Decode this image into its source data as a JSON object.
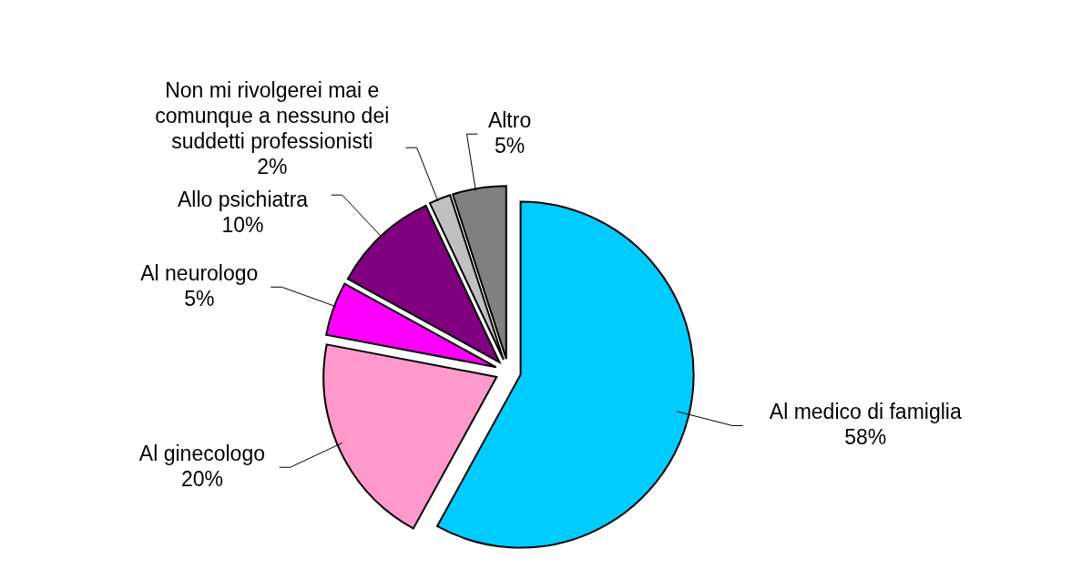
{
  "chart_data": {
    "type": "pie",
    "categories": [
      "Al medico di famiglia",
      "Al ginecologo",
      "Al neurologo",
      "Allo psichiatra",
      "Non mi rivolgerei mai e comunque a nessuno dei suddetti professionisti",
      "Altro"
    ],
    "values": [
      58,
      20,
      5,
      10,
      2,
      5
    ],
    "value_labels": [
      "58%",
      "20%",
      "5%",
      "10%",
      "2%",
      "5%"
    ],
    "colors": [
      "#00ccff",
      "#ff99cc",
      "#ff00ff",
      "#800080",
      "#c0c0c0",
      "#808080"
    ]
  }
}
